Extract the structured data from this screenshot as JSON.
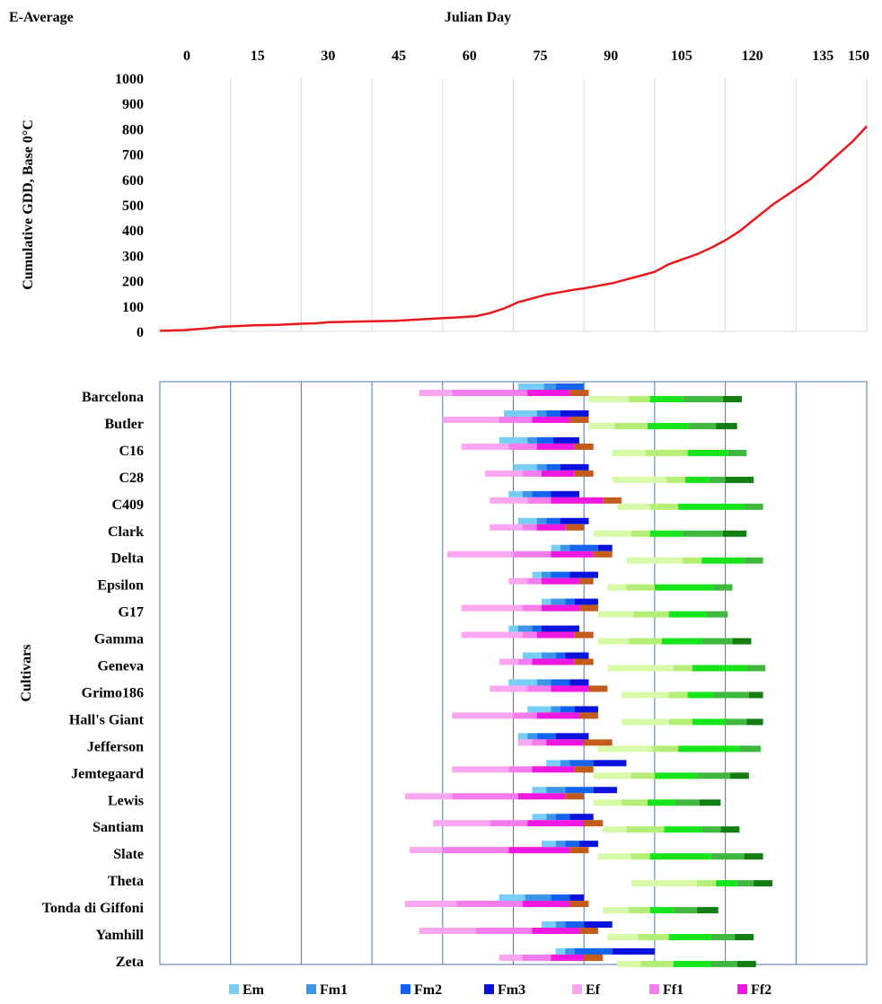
{
  "header": {
    "site": "E-Average",
    "x_title": "Julian Day"
  },
  "chart_data": [
    {
      "type": "line",
      "xlabel": "Julian Day",
      "ylabel": "Cumulative GDD, Base 0°C",
      "xlim": [
        0,
        150
      ],
      "ylim": [
        0,
        1000
      ],
      "x_ticks": [
        0,
        15,
        30,
        45,
        60,
        75,
        90,
        105,
        120,
        135,
        150
      ],
      "y_ticks": [
        0,
        100,
        200,
        300,
        400,
        500,
        600,
        700,
        800,
        900,
        1000
      ],
      "grid": true,
      "series": [
        {
          "color": "#e8191d",
          "x": [
            0,
            5,
            10,
            13,
            15,
            18,
            20,
            25,
            30,
            33,
            36,
            40,
            45,
            50,
            55,
            60,
            63,
            67,
            70,
            73,
            76,
            78,
            80,
            82,
            85,
            88,
            90,
            93,
            96,
            99,
            102,
            105,
            108,
            111,
            114,
            117,
            120,
            123,
            126,
            130,
            134,
            138,
            141,
            144,
            147,
            150
          ],
          "y": [
            2,
            5,
            12,
            18,
            20,
            22,
            24,
            26,
            30,
            32,
            36,
            38,
            40,
            42,
            47,
            52,
            55,
            60,
            72,
            90,
            115,
            125,
            135,
            145,
            155,
            165,
            170,
            180,
            190,
            205,
            220,
            235,
            265,
            285,
            305,
            330,
            360,
            395,
            440,
            500,
            550,
            600,
            650,
            700,
            750,
            810
          ]
        }
      ]
    },
    {
      "type": "bar",
      "orientation": "horizontal-stacked-ranges",
      "ylabel": "Cultivars",
      "xlim": [
        0,
        150
      ],
      "grid": true,
      "legend": {
        "position": "bottom",
        "items": [
          {
            "name": "Em",
            "color": "#77cdf4"
          },
          {
            "name": "Fm1",
            "color": "#3d95ea"
          },
          {
            "name": "Fm2",
            "color": "#1463f0"
          },
          {
            "name": "Fm3",
            "color": "#0a12dd"
          },
          {
            "name": "Ef",
            "color": "#fba6f0"
          },
          {
            "name": "Ff1",
            "color": "#f57ced"
          },
          {
            "name": "Ff2",
            "color": "#ef18e1"
          }
        ]
      },
      "stage_colors": {
        "m": [
          "#77cdf4",
          "#3d95ea",
          "#1463f0",
          "#0a12dd"
        ],
        "f": [
          "#fba6f0",
          "#f57ced",
          "#ef18e1",
          "#c25b1b"
        ],
        "l": [
          "#d7f9a8",
          "#b5ee76",
          "#16e51c",
          "#3eb83e",
          "#137c13"
        ]
      },
      "cultivars": [
        {
          "name": "Barcelona",
          "m": [
            76,
            81.5,
            84,
            90
          ],
          "f": [
            55,
            62,
            78,
            87,
            91
          ],
          "l": [
            91,
            99.5,
            104,
            111,
            119.5,
            123.5
          ]
        },
        {
          "name": "Butler",
          "m": [
            73,
            80,
            82,
            85,
            91
          ],
          "f": [
            60,
            72,
            79,
            87,
            91
          ],
          "l": [
            91,
            96.5,
            103.5,
            112,
            118,
            122.5
          ]
        },
        {
          "name": "C16",
          "m": [
            72,
            78,
            80,
            83.5,
            89
          ],
          "f": [
            64,
            74,
            80,
            88,
            92
          ],
          "l": [
            96,
            103,
            112,
            120.5,
            124.5
          ]
        },
        {
          "name": "C28",
          "m": [
            75,
            80,
            82,
            85,
            91
          ],
          "f": [
            69,
            77,
            81,
            88,
            92
          ],
          "l": [
            96,
            107.5,
            111.5,
            116.5,
            120,
            126
          ]
        },
        {
          "name": "C409",
          "m": [
            74,
            77,
            79,
            83,
            89
          ],
          "f": [
            70,
            78,
            83,
            94,
            98
          ],
          "l": [
            97,
            104,
            110,
            124,
            128
          ]
        },
        {
          "name": "Clark",
          "m": [
            76,
            80,
            82,
            85,
            91
          ],
          "f": [
            70,
            77,
            80,
            86,
            90
          ],
          "l": [
            92,
            100,
            104,
            111,
            119.5,
            124.5
          ]
        },
        {
          "name": "Delta",
          "m": [
            83,
            85,
            87,
            93,
            96
          ],
          "f": [
            61,
            75,
            83,
            92,
            96
          ],
          "l": [
            99,
            111,
            115,
            124,
            128
          ]
        },
        {
          "name": "Epsilon",
          "m": [
            79,
            81,
            83,
            87,
            93
          ],
          "f": [
            74,
            78,
            81,
            89,
            92
          ],
          "l": [
            95,
            99,
            105,
            117.5,
            121.5
          ]
        },
        {
          "name": "G17",
          "m": [
            81,
            83,
            86,
            88,
            93
          ],
          "f": [
            64,
            77,
            81,
            89,
            93
          ],
          "l": [
            93,
            100.5,
            108,
            116,
            120.5
          ]
        },
        {
          "name": "Gamma",
          "m": [
            74,
            76,
            79,
            81,
            89
          ],
          "f": [
            64,
            77,
            80,
            88,
            92
          ],
          "l": [
            93,
            99.5,
            106.5,
            115,
            121.5,
            125.5
          ]
        },
        {
          "name": "Geneva",
          "m": [
            77,
            81,
            84,
            86,
            91
          ],
          "f": [
            72,
            76,
            79,
            88,
            92
          ],
          "l": [
            95,
            109,
            113,
            124.5,
            128.5
          ]
        },
        {
          "name": "Grimo186",
          "m": [
            74,
            80,
            83,
            87,
            91
          ],
          "f": [
            70,
            78,
            83,
            91,
            95
          ],
          "l": [
            98,
            108,
            112,
            117.5,
            125,
            128
          ]
        },
        {
          "name": "Hall's Giant",
          "m": [
            78,
            83,
            85,
            88,
            93
          ],
          "f": [
            62,
            75,
            80,
            89,
            93
          ],
          "l": [
            98,
            108,
            113,
            120,
            124.5,
            128
          ]
        },
        {
          "name": "Jefferson",
          "m": [
            76,
            78,
            80,
            84,
            91
          ],
          "f": [
            76,
            79,
            82,
            90,
            96
          ],
          "l": [
            93,
            104.5,
            110,
            123,
            127.5
          ]
        },
        {
          "name": "Jemtegaard",
          "m": [
            82,
            85,
            87,
            92,
            99
          ],
          "f": [
            62,
            74,
            79,
            88,
            92
          ],
          "l": [
            92,
            100,
            105,
            114,
            121,
            125
          ]
        },
        {
          "name": "Lewis",
          "m": [
            79,
            82,
            86,
            92,
            97
          ],
          "f": [
            52,
            62,
            76,
            86,
            90
          ],
          "l": [
            92,
            98,
            103.5,
            109.5,
            114.5,
            119
          ]
        },
        {
          "name": "Santiam",
          "m": [
            79,
            82,
            84,
            87,
            92
          ],
          "f": [
            58,
            70,
            78,
            90,
            94
          ],
          "l": [
            94,
            99,
            107,
            115,
            119,
            123
          ]
        },
        {
          "name": "Slate",
          "m": [
            81,
            84,
            86,
            89,
            93
          ],
          "f": [
            53,
            60,
            74,
            87,
            91
          ],
          "l": [
            93,
            100,
            104,
            117,
            124,
            128
          ]
        },
        {
          "name": "Theta",
          "m": [],
          "f": [],
          "l": [
            100,
            114,
            118,
            122.5,
            126,
            130
          ]
        },
        {
          "name": "Tonda di Giffoni",
          "m": [
            72,
            77.5,
            83,
            87,
            90
          ],
          "f": [
            52,
            63,
            77,
            87,
            91
          ],
          "l": [
            94,
            99.5,
            104,
            109,
            114,
            118.5
          ]
        },
        {
          "name": "Yamhill",
          "m": [
            81,
            84,
            86,
            90,
            96
          ],
          "f": [
            55,
            67,
            79,
            89,
            93
          ],
          "l": [
            95,
            101.5,
            108,
            117,
            122,
            126
          ]
        },
        {
          "name": "Zeta",
          "m": [
            84,
            86,
            88,
            96,
            105
          ],
          "f": [
            72,
            77,
            83,
            90,
            94
          ],
          "l": [
            97,
            102,
            109,
            117,
            122.5,
            126.5
          ]
        }
      ]
    }
  ]
}
